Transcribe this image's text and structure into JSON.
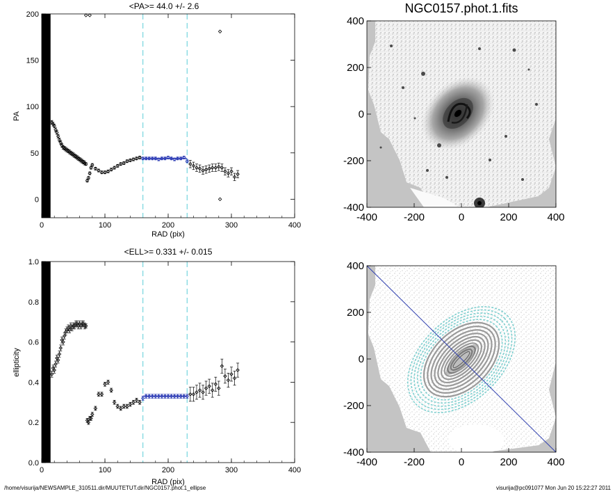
{
  "footer": {
    "path": "/home/visurija/NEWSAMPLE_310511.dir/MUUTETUT.dir/NGC0157.phot.1_ellipse",
    "user_timestamp": "visurija@pc091077  Mon Jun 20 15:22:27 2011"
  },
  "colors": {
    "marker": "#000000",
    "fit_points": "#1f2fb0",
    "fit_line": "#1f2fb0",
    "vline": "#7fd8e0",
    "image_gray": "#c0c0c0",
    "contour_outer": "#7fd0d0",
    "contour_inner": "#9a9a9a"
  },
  "chart_data": [
    {
      "type": "scatter",
      "title": "<PA>=  44.0 +/-   2.6",
      "xlabel": "RAD (pix)",
      "ylabel": "PA",
      "xlim": [
        0,
        400
      ],
      "ylim": [
        -20,
        200
      ],
      "xticks": [
        0,
        100,
        200,
        300,
        400
      ],
      "yticks": [
        0,
        50,
        100,
        150,
        200
      ],
      "vlines": [
        160,
        230
      ],
      "fit": {
        "x": [
          160,
          230
        ],
        "y": 44.0
      },
      "masked_range": [
        0,
        14
      ],
      "x": [
        16,
        18,
        20,
        22,
        24,
        26,
        28,
        30,
        32,
        34,
        36,
        38,
        40,
        42,
        44,
        46,
        48,
        50,
        52,
        54,
        56,
        58,
        60,
        62,
        64,
        66,
        68,
        70,
        72,
        74,
        76,
        78,
        80,
        85,
        90,
        95,
        100,
        105,
        110,
        115,
        120,
        125,
        130,
        135,
        140,
        145,
        150,
        155,
        160,
        165,
        170,
        175,
        180,
        185,
        190,
        195,
        200,
        205,
        210,
        215,
        220,
        225,
        230,
        235,
        240,
        245,
        250,
        255,
        260,
        265,
        270,
        275,
        280,
        285,
        290,
        295,
        300,
        305,
        310
      ],
      "y": [
        83,
        81,
        79,
        75,
        72,
        68,
        64,
        61,
        58,
        56,
        55,
        54,
        53,
        52,
        51,
        50,
        49,
        48,
        47,
        46,
        45,
        44,
        43,
        42,
        41,
        40,
        39,
        38,
        20,
        23,
        28,
        34,
        37,
        33,
        31,
        29,
        29,
        30,
        32,
        34,
        36,
        38,
        39,
        41,
        42,
        43,
        44,
        45,
        44,
        44,
        44,
        44,
        44,
        43,
        44,
        44,
        45,
        44,
        43,
        44,
        44,
        45,
        41,
        38,
        36,
        34,
        33,
        31,
        32,
        33,
        34,
        34,
        35,
        34,
        30,
        28,
        30,
        24,
        27
      ],
      "outliers": {
        "x": [
          70,
          76,
          282,
          282
        ],
        "y": [
          200,
          200,
          181,
          0
        ]
      }
    },
    {
      "type": "scatter",
      "title": "<ELL>= 0.331 +/-  0.015",
      "xlabel": "RAD (pix)",
      "ylabel": "ellipticity",
      "xlim": [
        0,
        400
      ],
      "ylim": [
        0,
        1.0
      ],
      "xticks": [
        0,
        100,
        200,
        300,
        400
      ],
      "yticks": [
        0.0,
        0.2,
        0.4,
        0.6,
        0.8,
        1.0
      ],
      "vlines": [
        160,
        230
      ],
      "fit": {
        "x": [
          160,
          230
        ],
        "y": 0.331
      },
      "masked_range": [
        0,
        14
      ],
      "x": [
        16,
        18,
        20,
        22,
        24,
        26,
        28,
        30,
        32,
        34,
        36,
        38,
        40,
        42,
        44,
        46,
        48,
        50,
        52,
        54,
        56,
        58,
        60,
        62,
        64,
        66,
        68,
        70,
        72,
        74,
        76,
        78,
        80,
        85,
        90,
        95,
        100,
        105,
        110,
        115,
        120,
        125,
        130,
        135,
        140,
        145,
        150,
        155,
        160,
        165,
        170,
        175,
        180,
        185,
        190,
        195,
        200,
        205,
        210,
        215,
        220,
        225,
        230,
        235,
        240,
        245,
        250,
        255,
        260,
        265,
        270,
        275,
        280,
        285,
        290,
        295,
        300,
        305,
        310
      ],
      "y": [
        0.44,
        0.47,
        0.46,
        0.49,
        0.52,
        0.51,
        0.54,
        0.57,
        0.61,
        0.6,
        0.63,
        0.65,
        0.66,
        0.67,
        0.66,
        0.68,
        0.67,
        0.68,
        0.68,
        0.69,
        0.69,
        0.68,
        0.69,
        0.68,
        0.69,
        0.69,
        0.68,
        0.68,
        0.21,
        0.2,
        0.22,
        0.22,
        0.24,
        0.27,
        0.34,
        0.34,
        0.39,
        0.4,
        0.36,
        0.3,
        0.28,
        0.27,
        0.28,
        0.28,
        0.29,
        0.3,
        0.31,
        0.3,
        0.32,
        0.33,
        0.33,
        0.33,
        0.33,
        0.33,
        0.33,
        0.33,
        0.33,
        0.33,
        0.33,
        0.33,
        0.33,
        0.33,
        0.33,
        0.34,
        0.34,
        0.35,
        0.36,
        0.35,
        0.37,
        0.38,
        0.36,
        0.39,
        0.37,
        0.48,
        0.43,
        0.41,
        0.44,
        0.42,
        0.46
      ]
    },
    {
      "type": "image",
      "title": "NGC0157.phot.1.fits",
      "xlim": [
        -400,
        400
      ],
      "ylim": [
        -400,
        400
      ],
      "xticks": [
        -400,
        -200,
        0,
        200,
        400
      ],
      "yticks": [
        -400,
        -200,
        0,
        200,
        400
      ]
    },
    {
      "type": "image",
      "title": "",
      "xlim": [
        -400,
        400
      ],
      "ylim": [
        -400,
        400
      ],
      "xticks": [
        -400,
        -200,
        0,
        200,
        400
      ],
      "yticks": [
        -400,
        -200,
        0,
        200,
        400
      ],
      "major_axis_line": {
        "x": [
          -400,
          400
        ],
        "y": [
          400,
          -400
        ]
      },
      "ellipse_pa": 44.0,
      "ellipse_ell": 0.331
    }
  ]
}
